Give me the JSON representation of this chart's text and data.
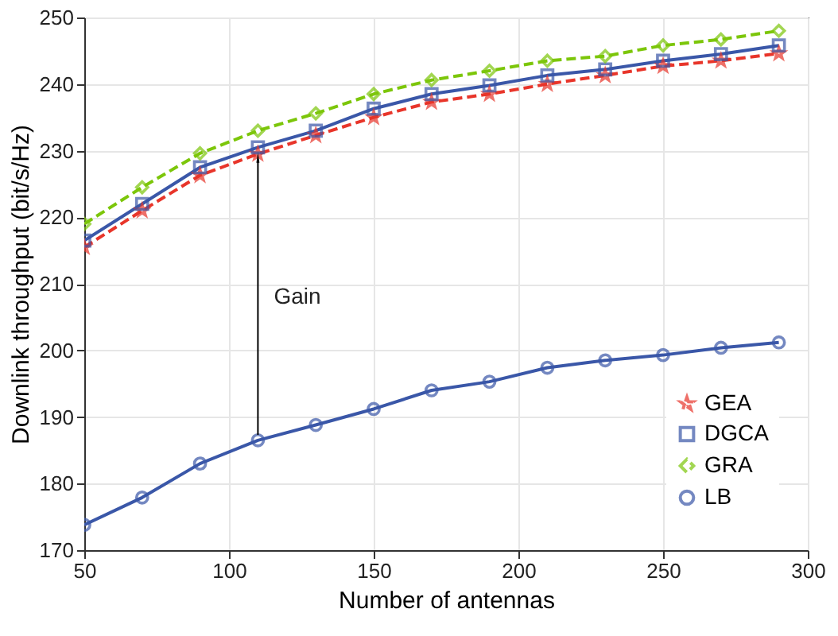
{
  "chart_data": {
    "type": "line",
    "xlabel": "Number of antennas",
    "ylabel": "Downlink throughput (bit/s/Hz)",
    "x": [
      50,
      70,
      90,
      110,
      130,
      150,
      170,
      190,
      210,
      230,
      250,
      270,
      290
    ],
    "series": [
      {
        "name": "GEA",
        "color": "#e8352a",
        "marker": "star",
        "line_style": "dashed",
        "values": [
          215.5,
          221,
          226.3,
          229.5,
          232.3,
          235,
          237.3,
          238.5,
          240,
          241.3,
          242.7,
          243.5,
          244.6
        ]
      },
      {
        "name": "DGCA",
        "color": "#3a57a8",
        "marker": "square",
        "line_style": "solid",
        "values": [
          216.5,
          222,
          227.5,
          230.5,
          233,
          236.3,
          238.5,
          239.8,
          241.3,
          242.2,
          243.5,
          244.5,
          245.8
        ]
      },
      {
        "name": "GRA",
        "color": "#7cc60a",
        "marker": "diamond",
        "line_style": "dashed",
        "values": [
          219,
          224.5,
          229.6,
          233,
          235.6,
          238.5,
          240.6,
          242,
          243.5,
          244.2,
          245.8,
          246.7,
          248
        ]
      },
      {
        "name": "LB",
        "color": "#3a57a8",
        "marker": "circle",
        "line_style": "solid",
        "values": [
          173.8,
          177.9,
          183,
          186.5,
          188.8,
          191.2,
          194,
          195.3,
          197.4,
          198.5,
          199.3,
          200.4,
          201.2
        ]
      }
    ],
    "annotations": [
      "Gain"
    ],
    "xlim": [
      50,
      300
    ],
    "xticks": [
      50,
      100,
      150,
      200,
      250,
      300
    ],
    "ylim": [
      170,
      250
    ],
    "yticks": [
      170,
      180,
      190,
      200,
      210,
      220,
      230,
      240,
      250
    ],
    "grid": true,
    "legend": "bottom right"
  }
}
